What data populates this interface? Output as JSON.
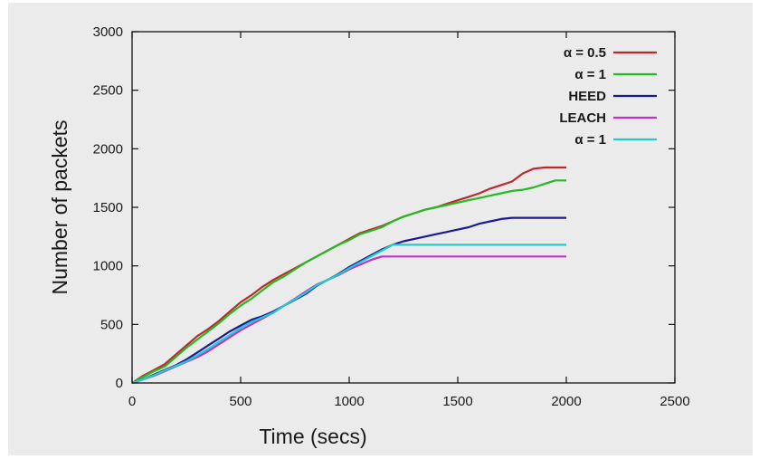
{
  "chart_data": {
    "type": "line",
    "title": "",
    "xlabel": "Time (secs)",
    "ylabel": "Number of packets",
    "xlim": [
      0,
      2500
    ],
    "ylim": [
      0,
      3000
    ],
    "xticks": [
      0,
      500,
      1000,
      1500,
      2000,
      2500
    ],
    "yticks": [
      0,
      500,
      1000,
      1500,
      2000,
      2500,
      3000
    ],
    "grid": false,
    "legend_position": "top-right",
    "series": [
      {
        "name": "α = 0.5",
        "color": "#c0282d",
        "x": [
          0,
          50,
          100,
          150,
          200,
          250,
          300,
          350,
          400,
          450,
          500,
          550,
          600,
          650,
          700,
          750,
          800,
          850,
          900,
          950,
          1000,
          1050,
          1100,
          1150,
          1200,
          1250,
          1300,
          1350,
          1400,
          1450,
          1500,
          1550,
          1600,
          1650,
          1700,
          1750,
          1800,
          1850,
          1900,
          1950,
          2000
        ],
        "y": [
          0,
          60,
          110,
          160,
          240,
          320,
          400,
          460,
          530,
          610,
          690,
          750,
          820,
          880,
          930,
          980,
          1030,
          1080,
          1130,
          1180,
          1230,
          1280,
          1310,
          1340,
          1380,
          1420,
          1450,
          1480,
          1500,
          1530,
          1560,
          1590,
          1620,
          1660,
          1690,
          1720,
          1790,
          1830,
          1840,
          1840,
          1840
        ]
      },
      {
        "name": "α = 1",
        "color": "#22bb22",
        "x": [
          0,
          50,
          100,
          150,
          200,
          250,
          300,
          350,
          400,
          450,
          500,
          550,
          600,
          650,
          700,
          750,
          800,
          850,
          900,
          950,
          1000,
          1050,
          1100,
          1150,
          1200,
          1250,
          1300,
          1350,
          1400,
          1450,
          1500,
          1550,
          1600,
          1650,
          1700,
          1750,
          1800,
          1850,
          1900,
          1950,
          2000
        ],
        "y": [
          0,
          50,
          100,
          140,
          220,
          300,
          370,
          440,
          510,
          590,
          660,
          720,
          790,
          860,
          910,
          970,
          1030,
          1080,
          1130,
          1180,
          1220,
          1270,
          1300,
          1330,
          1380,
          1420,
          1450,
          1480,
          1500,
          1520,
          1540,
          1560,
          1580,
          1600,
          1620,
          1640,
          1650,
          1670,
          1700,
          1730,
          1730
        ]
      },
      {
        "name": "HEED",
        "color": "#1a1a99",
        "x": [
          0,
          50,
          100,
          150,
          200,
          250,
          300,
          350,
          400,
          450,
          500,
          550,
          600,
          650,
          700,
          750,
          800,
          850,
          900,
          950,
          1000,
          1050,
          1100,
          1150,
          1200,
          1250,
          1300,
          1350,
          1400,
          1450,
          1500,
          1550,
          1600,
          1650,
          1700,
          1750,
          1800,
          1850,
          1900,
          1950,
          2000
        ],
        "y": [
          0,
          30,
          70,
          110,
          150,
          200,
          260,
          320,
          380,
          440,
          490,
          540,
          570,
          610,
          660,
          710,
          760,
          830,
          880,
          930,
          990,
          1040,
          1090,
          1140,
          1180,
          1210,
          1230,
          1250,
          1270,
          1290,
          1310,
          1330,
          1360,
          1380,
          1400,
          1410,
          1410,
          1410,
          1410,
          1410,
          1410
        ]
      },
      {
        "name": "LEACH",
        "color": "#bb33cc",
        "x": [
          0,
          50,
          100,
          150,
          200,
          250,
          300,
          350,
          400,
          450,
          500,
          550,
          600,
          650,
          700,
          750,
          800,
          850,
          900,
          950,
          1000,
          1050,
          1100,
          1150,
          1200,
          1250,
          1300,
          1350,
          1400,
          1450,
          1500,
          1550,
          1600,
          1650,
          1700,
          1750,
          1800,
          1850,
          1900,
          1950,
          2000
        ],
        "y": [
          0,
          30,
          60,
          100,
          140,
          180,
          220,
          270,
          330,
          390,
          450,
          500,
          550,
          600,
          660,
          720,
          780,
          840,
          880,
          920,
          970,
          1010,
          1050,
          1080,
          1080,
          1080,
          1080,
          1080,
          1080,
          1080,
          1080,
          1080,
          1080,
          1080,
          1080,
          1080,
          1080,
          1080,
          1080,
          1080,
          1080
        ]
      },
      {
        "name": "α = 1",
        "color": "#22cccc",
        "x": [
          0,
          50,
          100,
          150,
          200,
          250,
          300,
          350,
          400,
          450,
          500,
          550,
          600,
          650,
          700,
          750,
          800,
          850,
          900,
          950,
          1000,
          1050,
          1100,
          1150,
          1200,
          1250,
          1300,
          1350,
          1400,
          1450,
          1500,
          1550,
          1600,
          1650,
          1700,
          1750,
          1800,
          1850,
          1900,
          1950,
          2000
        ],
        "y": [
          0,
          30,
          65,
          105,
          145,
          185,
          235,
          290,
          350,
          410,
          470,
          520,
          560,
          600,
          660,
          715,
          770,
          835,
          880,
          925,
          980,
          1030,
          1080,
          1130,
          1180,
          1180,
          1180,
          1180,
          1180,
          1180,
          1180,
          1180,
          1180,
          1180,
          1180,
          1180,
          1180,
          1180,
          1180,
          1180,
          1180
        ]
      }
    ]
  }
}
